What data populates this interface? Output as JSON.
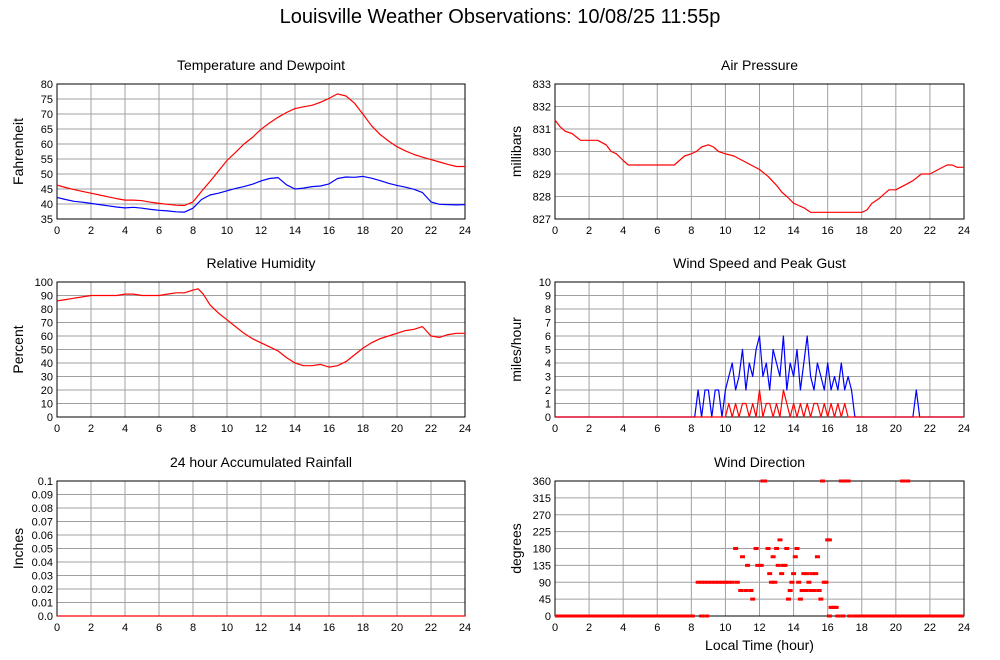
{
  "page": {
    "title": "Louisville Weather Observations: 10/08/25 11:55p"
  },
  "colors": {
    "temperature": "#ff0000",
    "dewpoint": "#0000ff",
    "grid": "#a0a0a0"
  },
  "chart_data": [
    {
      "id": "temp",
      "type": "line",
      "title": "Temperature and Dewpoint",
      "ylabel": "Fahrenheit",
      "xlabel": "",
      "xlim": [
        0,
        24
      ],
      "ylim": [
        35,
        80
      ],
      "xticks": [
        "0",
        "2",
        "4",
        "6",
        "8",
        "10",
        "12",
        "14",
        "16",
        "18",
        "20",
        "22",
        "24"
      ],
      "yticks": [
        "35",
        "40",
        "45",
        "50",
        "55",
        "60",
        "65",
        "70",
        "75",
        "80"
      ],
      "grid": true,
      "x": [
        0,
        0.5,
        1,
        1.5,
        2,
        2.5,
        3,
        3.5,
        4,
        4.5,
        5,
        5.5,
        6,
        6.5,
        7,
        7.5,
        8,
        8.5,
        9,
        9.5,
        10,
        10.5,
        11,
        11.5,
        12,
        12.5,
        13,
        13.5,
        14,
        14.5,
        15,
        15.5,
        16,
        16.5,
        17,
        17.5,
        18,
        18.5,
        19,
        19.5,
        20,
        20.5,
        21,
        21.5,
        22,
        22.5,
        23,
        23.5,
        24
      ],
      "series": [
        {
          "key": "temperature",
          "values": [
            46.3,
            45.5,
            44.8,
            44.2,
            43.6,
            43.0,
            42.4,
            41.8,
            41.3,
            41.3,
            41.1,
            40.6,
            40.2,
            39.9,
            39.6,
            39.5,
            40.7,
            44.2,
            47.5,
            51.0,
            54.5,
            57.2,
            60.0,
            62.2,
            64.9,
            67.0,
            68.9,
            70.5,
            71.8,
            72.4,
            72.9,
            73.9,
            75.2,
            76.7,
            76.0,
            73.6,
            69.9,
            66.1,
            63.2,
            61.0,
            59.1,
            57.7,
            56.5,
            55.6,
            54.8,
            54.0,
            53.2,
            52.5,
            52.5
          ]
        },
        {
          "key": "dewpoint",
          "values": [
            42.2,
            41.5,
            40.9,
            40.6,
            40.2,
            39.8,
            39.4,
            39.0,
            38.7,
            38.9,
            38.6,
            38.2,
            37.9,
            37.7,
            37.4,
            37.3,
            38.6,
            41.5,
            43.0,
            43.6,
            44.4,
            45.2,
            45.8,
            46.6,
            47.7,
            48.5,
            48.8,
            46.4,
            45.0,
            45.3,
            45.8,
            46.0,
            46.7,
            48.5,
            49.0,
            48.9,
            49.2,
            48.6,
            47.8,
            46.9,
            46.2,
            45.6,
            44.9,
            43.8,
            40.7,
            39.9,
            39.8,
            39.7,
            39.8
          ]
        }
      ]
    },
    {
      "id": "press",
      "type": "line",
      "title": "Air Pressure",
      "ylabel": "millibars",
      "xlabel": "",
      "xlim": [
        0,
        24
      ],
      "ylim": [
        827,
        833
      ],
      "xticks": [
        "0",
        "2",
        "4",
        "6",
        "8",
        "10",
        "12",
        "14",
        "16",
        "18",
        "20",
        "22",
        "24"
      ],
      "yticks": [
        "827",
        "828",
        "829",
        "830",
        "831",
        "832",
        "833"
      ],
      "grid": true,
      "x": [
        0,
        0.3,
        0.6,
        1,
        1.5,
        2,
        2.5,
        3,
        3.3,
        3.6,
        4,
        4.3,
        4.6,
        5,
        5.5,
        6,
        6.5,
        7,
        7.3,
        7.6,
        8,
        8.3,
        8.6,
        9,
        9.3,
        9.6,
        10,
        10.5,
        11,
        11.5,
        12,
        12.5,
        13,
        13.3,
        13.6,
        14,
        14.3,
        14.6,
        15,
        15.5,
        16,
        16.5,
        17,
        17.5,
        18,
        18.3,
        18.6,
        19,
        19.3,
        19.6,
        20,
        20.5,
        21,
        21.5,
        22,
        22.5,
        23,
        23.3,
        23.6,
        24
      ],
      "series": [
        {
          "key": "pressure",
          "values": [
            831.4,
            831.1,
            830.9,
            830.8,
            830.5,
            830.5,
            830.5,
            830.3,
            830.0,
            829.9,
            829.6,
            829.4,
            829.4,
            829.4,
            829.4,
            829.4,
            829.4,
            829.4,
            829.6,
            829.8,
            829.9,
            830.0,
            830.2,
            830.3,
            830.2,
            830.0,
            829.9,
            829.8,
            829.6,
            829.4,
            829.2,
            828.9,
            828.5,
            828.2,
            828.0,
            827.7,
            827.6,
            827.5,
            827.3,
            827.3,
            827.3,
            827.3,
            827.3,
            827.3,
            827.3,
            827.4,
            827.7,
            827.9,
            828.1,
            828.3,
            828.3,
            828.5,
            828.7,
            829.0,
            829.0,
            829.2,
            829.4,
            829.4,
            829.3,
            829.3
          ]
        }
      ]
    },
    {
      "id": "rh",
      "type": "line",
      "title": "Relative Humidity",
      "ylabel": "Percent",
      "xlabel": "",
      "xlim": [
        0,
        24
      ],
      "ylim": [
        0,
        100
      ],
      "xticks": [
        "0",
        "2",
        "4",
        "6",
        "8",
        "10",
        "12",
        "14",
        "16",
        "18",
        "20",
        "22",
        "24"
      ],
      "yticks": [
        "0",
        "10",
        "20",
        "30",
        "40",
        "50",
        "60",
        "70",
        "80",
        "90",
        "100"
      ],
      "grid": true,
      "x": [
        0,
        0.5,
        1,
        1.5,
        2,
        2.5,
        3,
        3.5,
        4,
        4.5,
        5,
        5.5,
        6,
        6.5,
        7,
        7.5,
        8,
        8.3,
        8.6,
        9,
        9.5,
        10,
        10.5,
        11,
        11.5,
        12,
        12.5,
        13,
        13.5,
        14,
        14.5,
        15,
        15.5,
        16,
        16.5,
        17,
        17.5,
        18,
        18.5,
        19,
        19.5,
        20,
        20.5,
        21,
        21.5,
        22,
        22.5,
        23,
        23.5,
        24
      ],
      "series": [
        {
          "key": "humidity",
          "values": [
            86,
            87,
            88,
            89,
            90,
            90,
            90,
            90,
            91,
            91,
            90,
            90,
            90,
            91,
            92,
            92,
            94,
            95,
            91,
            83,
            77,
            72,
            67,
            62,
            58,
            55,
            52,
            49,
            44,
            40,
            38,
            38,
            39,
            37,
            38,
            41,
            46,
            51,
            55,
            58,
            60,
            62,
            64,
            65,
            67,
            60,
            59,
            61,
            62,
            62
          ]
        }
      ]
    },
    {
      "id": "wind",
      "type": "line",
      "title": "Wind Speed and Peak Gust",
      "ylabel": "miles/hour",
      "xlabel": "",
      "xlim": [
        0,
        24
      ],
      "ylim": [
        0,
        10
      ],
      "xticks": [
        "0",
        "2",
        "4",
        "6",
        "8",
        "10",
        "12",
        "14",
        "16",
        "18",
        "20",
        "22",
        "24"
      ],
      "yticks": [
        "0",
        "1",
        "2",
        "3",
        "4",
        "5",
        "6",
        "7",
        "8",
        "9",
        "10"
      ],
      "grid": true,
      "x": [
        0,
        8.2,
        8.4,
        8.6,
        8.8,
        9.0,
        9.2,
        9.4,
        9.6,
        9.8,
        10.0,
        10.2,
        10.4,
        10.6,
        10.8,
        11.0,
        11.2,
        11.4,
        11.6,
        11.8,
        12.0,
        12.2,
        12.4,
        12.6,
        12.8,
        13.0,
        13.2,
        13.4,
        13.6,
        13.8,
        14.0,
        14.2,
        14.4,
        14.6,
        14.8,
        15.0,
        15.2,
        15.4,
        15.6,
        15.8,
        16.0,
        16.2,
        16.4,
        16.6,
        16.8,
        17.0,
        17.2,
        17.4,
        17.6,
        17.8,
        18.0,
        21.0,
        21.2,
        21.4,
        21.6,
        24
      ],
      "series": [
        {
          "key": "gust",
          "values": [
            0,
            0,
            2,
            0,
            2,
            2,
            0,
            2,
            2,
            0,
            2,
            3,
            4,
            2,
            3,
            5,
            2,
            4,
            3,
            5,
            6,
            3,
            4,
            2,
            5,
            4,
            3,
            6,
            2,
            4,
            3,
            5,
            2,
            4,
            6,
            3,
            2,
            4,
            3,
            2,
            4,
            2,
            3,
            2,
            4,
            2,
            3,
            2,
            0,
            0,
            0,
            0,
            2,
            0,
            0,
            0
          ]
        },
        {
          "key": "speed",
          "values": [
            0,
            0,
            0,
            0,
            0,
            0,
            0,
            0,
            0,
            0,
            0,
            1,
            0,
            1,
            0,
            1,
            1,
            0,
            1,
            0,
            2,
            0,
            1,
            1,
            0,
            1,
            0,
            2,
            1,
            0,
            1,
            0,
            1,
            0,
            1,
            0,
            1,
            1,
            0,
            1,
            0,
            1,
            0,
            1,
            0,
            1,
            0,
            0,
            0,
            0,
            0,
            0,
            0,
            0,
            0,
            0
          ]
        }
      ]
    },
    {
      "id": "rain",
      "type": "line",
      "title": "24 hour Accumulated Rainfall",
      "ylabel": "Inches",
      "xlabel": "",
      "xlim": [
        0,
        24
      ],
      "ylim": [
        0,
        0.1
      ],
      "xticks": [
        "0",
        "2",
        "4",
        "6",
        "8",
        "10",
        "12",
        "14",
        "16",
        "18",
        "20",
        "22",
        "24"
      ],
      "yticks": [
        "0.0",
        "0.01",
        "0.02",
        "0.03",
        "0.04",
        "0.05",
        "0.06",
        "0.07",
        "0.08",
        "0.09",
        "0.1"
      ],
      "grid": true,
      "x": [
        0,
        24
      ],
      "series": [
        {
          "key": "rain",
          "values": [
            0,
            0
          ]
        }
      ]
    },
    {
      "id": "dir",
      "type": "scatter",
      "title": "Wind Direction",
      "ylabel": "degrees",
      "xlabel": "Local Time (hour)",
      "xlim": [
        0,
        24
      ],
      "ylim": [
        0,
        360
      ],
      "xticks": [
        "0",
        "2",
        "4",
        "6",
        "8",
        "10",
        "12",
        "14",
        "16",
        "18",
        "20",
        "22",
        "24"
      ],
      "yticks": [
        "0",
        "45",
        "90",
        "135",
        "180",
        "225",
        "270",
        "315",
        "360"
      ],
      "grid": true,
      "x": [
        0.2,
        0.5,
        0.8,
        1.1,
        1.4,
        1.7,
        2.0,
        2.3,
        2.6,
        2.9,
        3.2,
        3.5,
        3.8,
        4.1,
        4.4,
        4.7,
        5.0,
        5.3,
        5.6,
        5.9,
        6.2,
        6.5,
        6.8,
        7.1,
        7.4,
        7.7,
        8.0,
        8.6,
        8.9,
        8.4,
        8.6,
        8.8,
        9.0,
        9.2,
        9.4,
        9.6,
        9.8,
        10.0,
        10.2,
        10.4,
        10.6,
        10.7,
        10.9,
        11.0,
        11.2,
        11.3,
        11.5,
        11.6,
        11.8,
        11.9,
        12.1,
        12.2,
        12.3,
        12.5,
        12.6,
        12.7,
        12.8,
        12.9,
        13.0,
        13.1,
        13.2,
        13.3,
        13.4,
        13.5,
        13.6,
        13.7,
        13.8,
        13.9,
        14.0,
        14.1,
        14.2,
        14.3,
        14.4,
        14.5,
        14.6,
        14.7,
        14.8,
        14.9,
        15.0,
        15.1,
        15.2,
        15.3,
        15.4,
        15.5,
        15.6,
        15.7,
        15.8,
        15.9,
        16.0,
        16.1,
        16.2,
        16.3,
        16.4,
        16.5,
        16.6,
        16.8,
        17.0,
        17.2,
        16.1,
        16.9,
        17.3,
        17.6,
        17.8,
        18.0,
        18.3,
        18.6,
        18.9,
        19.2,
        19.5,
        19.8,
        20.1,
        20.4,
        20.7,
        21.0,
        21.3,
        21.6,
        21.9,
        22.2,
        22.5,
        22.8,
        23.1,
        23.4,
        23.7,
        24.0
      ],
      "series": [
        {
          "key": "direction",
          "values": [
            0,
            0,
            0,
            0,
            0,
            0,
            0,
            0,
            0,
            0,
            0,
            0,
            0,
            0,
            0,
            0,
            0,
            0,
            0,
            0,
            0,
            0,
            0,
            0,
            0,
            0,
            0,
            0,
            0,
            90,
            90,
            90,
            90,
            90,
            90,
            90,
            90,
            90,
            90,
            90,
            180,
            90,
            68,
            158,
            68,
            135,
            68,
            45,
            180,
            135,
            135,
            360,
            360,
            180,
            113,
            90,
            158,
            90,
            180,
            135,
            203,
            113,
            135,
            135,
            180,
            45,
            68,
            90,
            113,
            158,
            180,
            90,
            45,
            68,
            113,
            68,
            113,
            90,
            68,
            113,
            68,
            113,
            158,
            68,
            45,
            360,
            90,
            90,
            203,
            203,
            23,
            23,
            23,
            23,
            0,
            360,
            360,
            360,
            0,
            0,
            0,
            0,
            0,
            0,
            0,
            0,
            0,
            0,
            0,
            0,
            0,
            360,
            360,
            0,
            0,
            0,
            0,
            0,
            0,
            0,
            0,
            0
          ]
        }
      ]
    }
  ]
}
